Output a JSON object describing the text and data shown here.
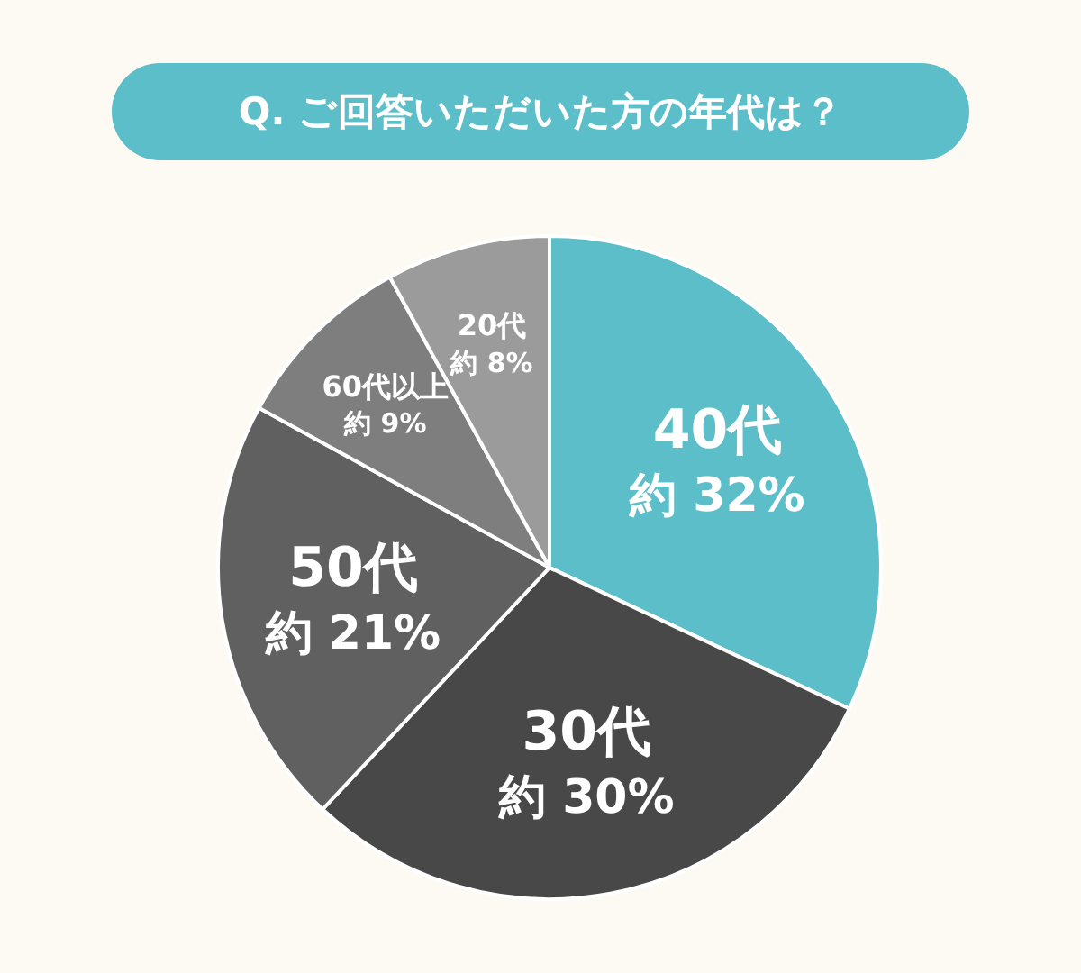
{
  "chart_data": {
    "type": "pie",
    "title": "Q. ご回答いただいた方の年代は？",
    "categories": [
      "40代",
      "30代",
      "50代",
      "60代以上",
      "20代"
    ],
    "values": [
      32,
      30,
      21,
      9,
      8
    ],
    "value_labels": [
      "約 32%",
      "約 30%",
      "約 21%",
      "約 9%",
      "約 8%"
    ],
    "colors": [
      "#5bbec8",
      "#484848",
      "#606060",
      "#7e7e7e",
      "#9b9b9b"
    ]
  }
}
